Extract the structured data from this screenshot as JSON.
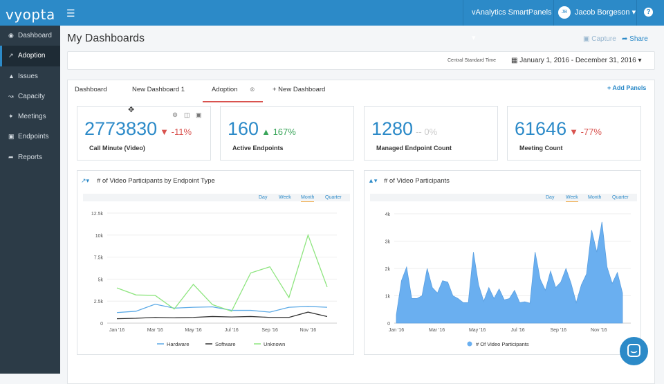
{
  "brand": {
    "logo": "vyopta"
  },
  "topbar": {
    "product_menu": "vAnalytics SmartPanels",
    "user_initials": "JB",
    "user_name": "Jacob Borgeson",
    "help": "?"
  },
  "sidebar": {
    "items": [
      {
        "label": "Dashboard",
        "icon": "dashboard-icon"
      },
      {
        "label": "Adoption",
        "icon": "line-chart-icon",
        "active": true
      },
      {
        "label": "Issues",
        "icon": "warning-icon"
      },
      {
        "label": "Capacity",
        "icon": "area-chart-icon"
      },
      {
        "label": "Meetings",
        "icon": "people-icon"
      },
      {
        "label": "Endpoints",
        "icon": "endpoint-icon"
      },
      {
        "label": "Reports",
        "icon": "share-arrow-icon"
      }
    ]
  },
  "page": {
    "title": "My Dashboards",
    "capture": "Capture",
    "share": "Share"
  },
  "datebar": {
    "timezone": "Central Standard Time",
    "range": "January 1, 2016 - December 31, 2016"
  },
  "tabs": {
    "items": [
      "Dashboard",
      "New Dashboard 1",
      "Adoption"
    ],
    "active": "Adoption",
    "new_tab": "+ New Dashboard",
    "add_panels": "+ Add Panels"
  },
  "kpis": [
    {
      "value": "2773830",
      "change": "-11%",
      "trend": "down",
      "label": "Call Minute (Video)"
    },
    {
      "value": "160",
      "change": "167%",
      "trend": "up",
      "label": "Active Endpoints"
    },
    {
      "value": "1280",
      "change": "-- 0%",
      "trend": "flat",
      "label": "Managed Endpoint Count"
    },
    {
      "value": "61646",
      "change": "-77%",
      "trend": "down",
      "label": "Meeting Count"
    }
  ],
  "periods": [
    "Day",
    "Week",
    "Month",
    "Quarter"
  ],
  "colors": {
    "accent": "#2c8ac8",
    "hardware": "#5aa9e6",
    "software": "#333333",
    "unknown": "#8ee57f",
    "area": "#6aaff0"
  },
  "chart_data": [
    {
      "type": "line",
      "title": "# of Video Participants by Endpoint Type",
      "selected_period": "Month",
      "x": [
        "Jan '16",
        "Feb '16",
        "Mar '16",
        "Apr '16",
        "May '16",
        "Jun '16",
        "Jul '16",
        "Aug '16",
        "Sep '16",
        "Oct '16",
        "Nov '16",
        "Dec '16"
      ],
      "x_ticks": [
        "Jan '16",
        "Mar '16",
        "May '16",
        "Jul '16",
        "Sep '16",
        "Nov '16"
      ],
      "ylim": [
        0,
        12500
      ],
      "y_ticks": [
        "0",
        "2.5k",
        "5k",
        "7.5k",
        "10k",
        "12.5k"
      ],
      "legend_position": "bottom",
      "series": [
        {
          "name": "Hardware",
          "values": [
            1200,
            1350,
            2150,
            1700,
            1800,
            1850,
            1450,
            1450,
            1250,
            1800,
            1900,
            1800
          ]
        },
        {
          "name": "Software",
          "values": [
            500,
            550,
            650,
            600,
            650,
            750,
            700,
            750,
            650,
            650,
            1250,
            750
          ]
        },
        {
          "name": "Unknown",
          "values": [
            4000,
            3200,
            3150,
            1600,
            4400,
            2100,
            1350,
            5700,
            6400,
            2900,
            10000,
            4100
          ]
        }
      ]
    },
    {
      "type": "area",
      "title": "# of Video Participants",
      "selected_period": "Week",
      "x_ticks": [
        "Jan '16",
        "Mar '16",
        "May '16",
        "Jul '16",
        "Sep '16",
        "Nov '16"
      ],
      "ylim": [
        0,
        4000
      ],
      "y_ticks": [
        "0",
        "1k",
        "2k",
        "3k",
        "4k"
      ],
      "legend_position": "bottom",
      "series": [
        {
          "name": "# Of Video Participants",
          "values": [
            300,
            1550,
            2050,
            900,
            900,
            1000,
            2000,
            1300,
            1100,
            1550,
            1500,
            1000,
            900,
            750,
            750,
            2600,
            1400,
            800,
            1300,
            900,
            1250,
            850,
            900,
            1200,
            750,
            780,
            730,
            2600,
            1600,
            1200,
            1900,
            1300,
            1500,
            2000,
            1450,
            750,
            1400,
            1800,
            3400,
            2600,
            3700,
            2050,
            1450,
            1850,
            1100
          ]
        }
      ]
    }
  ]
}
